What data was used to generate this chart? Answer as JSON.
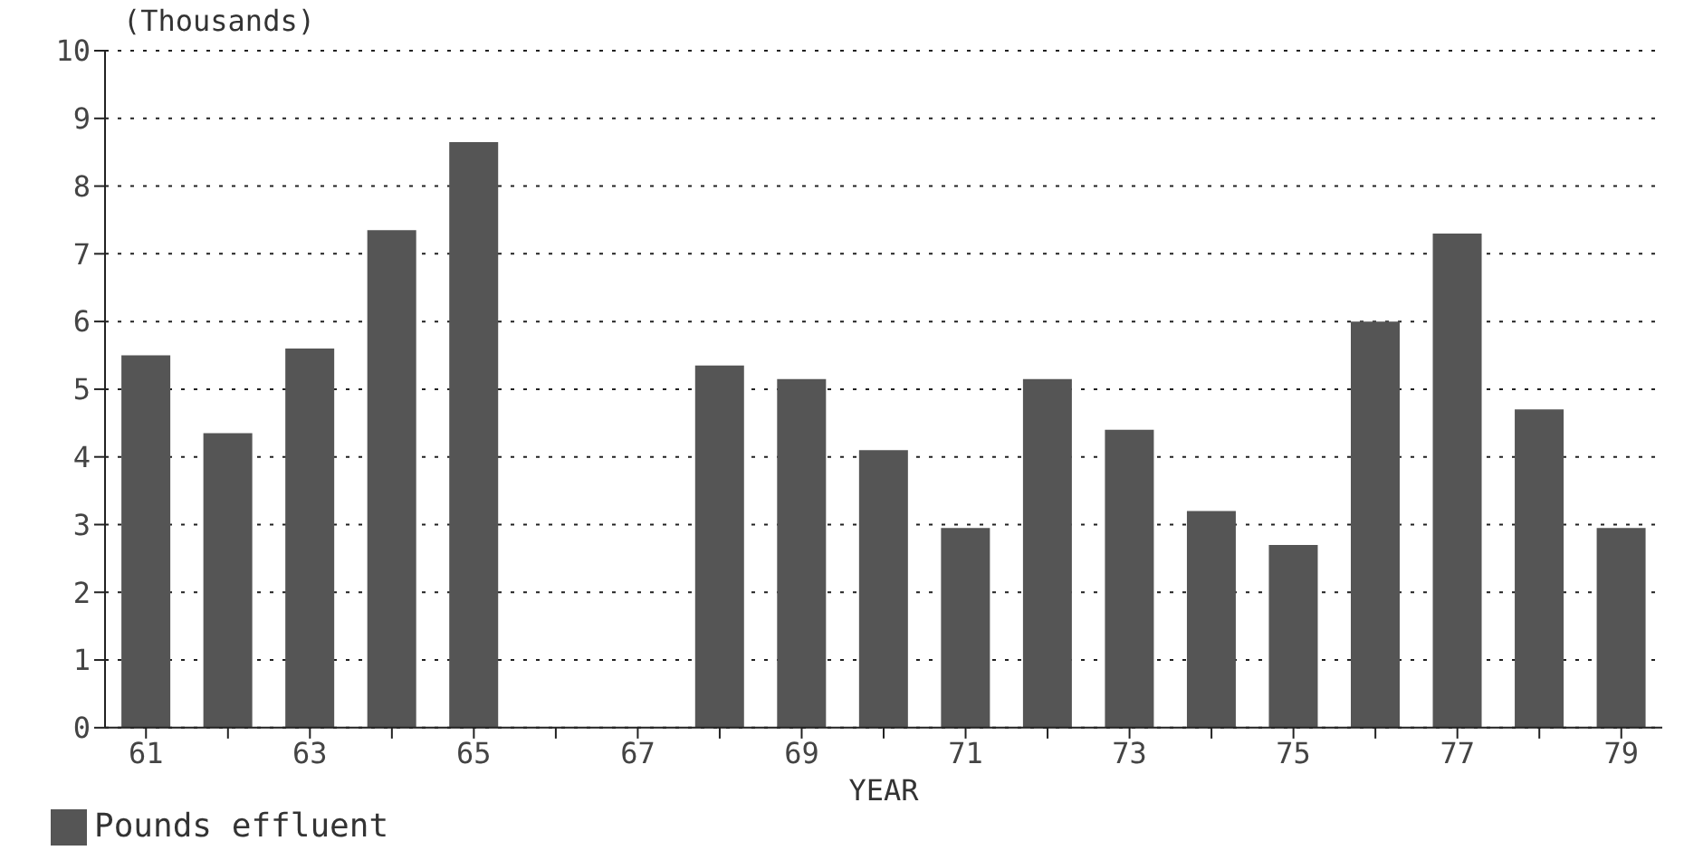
{
  "chart_data": {
    "type": "bar",
    "ylabel": "(Thousands)",
    "xlabel": "YEAR",
    "categories": [
      "61",
      null,
      "63",
      null,
      "65",
      null,
      "67",
      null,
      "69",
      null,
      "71",
      null,
      "73",
      null,
      "75",
      null,
      "77",
      null,
      "79"
    ],
    "series": [
      {
        "name": "Pounds effluent",
        "color": "#555555",
        "values": [
          5.5,
          4.35,
          5.6,
          7.35,
          8.65,
          null,
          null,
          5.35,
          5.15,
          4.1,
          2.95,
          5.15,
          4.4,
          3.2,
          2.7,
          6.0,
          7.3,
          4.7,
          2.95
        ]
      }
    ],
    "ylim": [
      0,
      10
    ],
    "yticks": [
      0,
      1,
      2,
      3,
      4,
      5,
      6,
      7,
      8,
      9,
      10
    ],
    "grid": "y",
    "legend": "bottom left"
  }
}
